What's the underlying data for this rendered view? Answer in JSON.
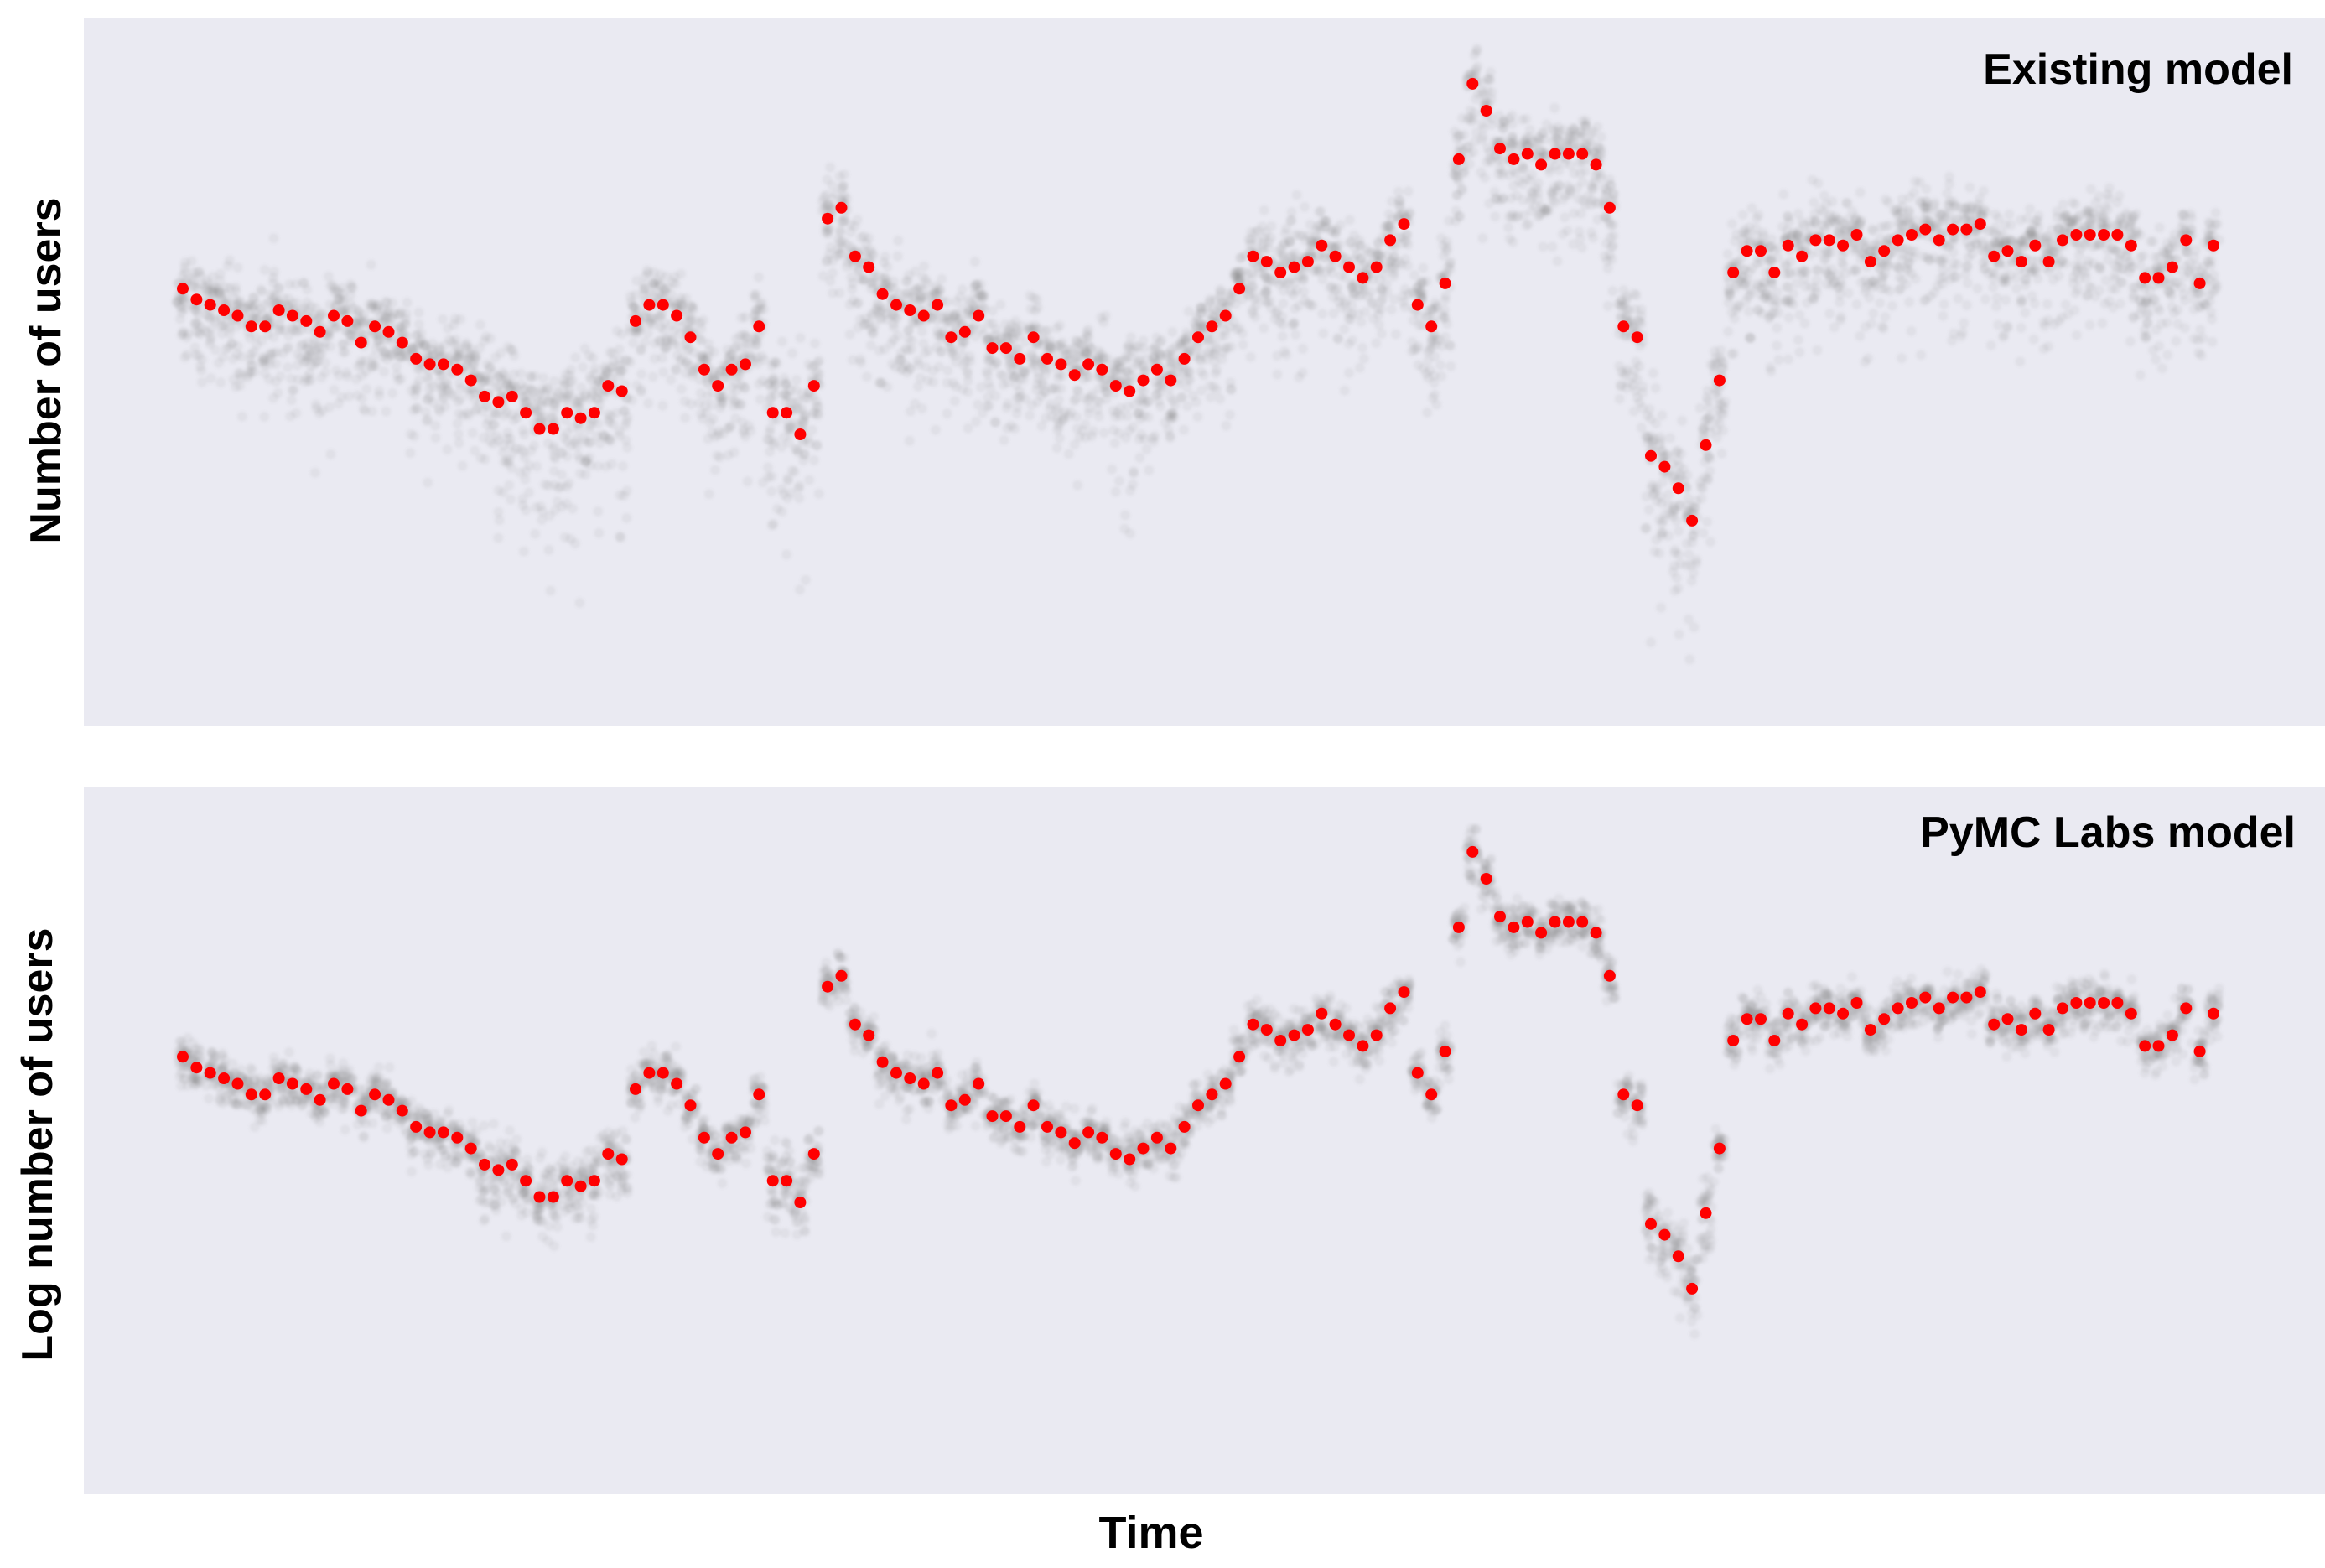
{
  "chart_data": [
    {
      "type": "scatter",
      "title": "Existing model",
      "xlabel": "",
      "ylabel": "Number of users",
      "xticks": "hidden",
      "yticks": "hidden",
      "grid": false,
      "legend": "none",
      "colors": {
        "observed": "#ff0000",
        "posterior_samples": "#808080",
        "background": "#eaeaf2"
      },
      "series": [
        {
          "values": [
            78,
            76,
            75,
            74,
            73,
            71,
            71,
            74,
            73,
            72,
            70,
            73,
            72,
            68,
            71,
            70,
            68,
            65,
            64,
            64,
            63,
            61,
            58,
            57,
            58,
            55,
            52,
            52,
            55,
            54,
            55,
            60,
            59,
            72,
            75,
            75,
            73,
            69,
            63,
            60,
            63,
            64,
            71,
            55,
            55,
            51,
            60,
            91,
            93,
            84,
            82,
            77,
            75,
            74,
            73,
            75,
            69,
            70,
            73,
            67,
            67,
            65,
            69,
            65,
            64,
            62,
            64,
            63,
            60,
            59,
            61,
            63,
            61,
            65,
            69,
            71,
            73,
            78,
            84,
            83,
            81,
            82,
            83,
            86,
            84,
            82,
            80,
            82,
            87,
            90,
            75,
            71,
            79,
            102,
            116,
            111,
            104,
            102,
            103,
            101,
            103,
            103,
            103,
            101,
            93,
            71,
            69,
            47,
            45,
            41,
            35,
            49,
            61,
            81,
            85,
            85,
            81,
            86,
            84,
            87,
            87,
            86,
            88,
            83,
            85,
            87,
            88,
            89,
            87,
            89,
            89,
            90,
            84,
            85,
            83,
            86,
            83,
            87,
            88,
            88,
            88,
            88,
            86,
            80,
            80,
            82,
            87,
            79,
            86
          ]
        }
      ]
    },
    {
      "type": "scatter",
      "title": "PyMC Labs model",
      "xlabel": "Time",
      "ylabel": "Log number of users",
      "xticks": "hidden",
      "yticks": "hidden",
      "grid": false,
      "legend": "none",
      "colors": {
        "observed": "#ff0000",
        "posterior_samples": "#808080",
        "background": "#eaeaf2"
      },
      "series": [
        {
          "values": [
            78,
            76,
            75,
            74,
            73,
            71,
            71,
            74,
            73,
            72,
            70,
            73,
            72,
            68,
            71,
            70,
            68,
            65,
            64,
            64,
            63,
            61,
            58,
            57,
            58,
            55,
            52,
            52,
            55,
            54,
            55,
            60,
            59,
            72,
            75,
            75,
            73,
            69,
            63,
            60,
            63,
            64,
            71,
            55,
            55,
            51,
            60,
            91,
            93,
            84,
            82,
            77,
            75,
            74,
            73,
            75,
            69,
            70,
            73,
            67,
            67,
            65,
            69,
            65,
            64,
            62,
            64,
            63,
            60,
            59,
            61,
            63,
            61,
            65,
            69,
            71,
            73,
            78,
            84,
            83,
            81,
            82,
            83,
            86,
            84,
            82,
            80,
            82,
            87,
            90,
            75,
            71,
            79,
            102,
            116,
            111,
            104,
            102,
            103,
            101,
            103,
            103,
            103,
            101,
            93,
            71,
            69,
            47,
            45,
            41,
            35,
            49,
            61,
            81,
            85,
            85,
            81,
            86,
            84,
            87,
            87,
            86,
            88,
            83,
            85,
            87,
            88,
            89,
            87,
            89,
            89,
            90,
            84,
            85,
            83,
            86,
            83,
            87,
            88,
            88,
            88,
            88,
            86,
            80,
            80,
            82,
            87,
            79,
            86
          ]
        }
      ]
    }
  ]
}
